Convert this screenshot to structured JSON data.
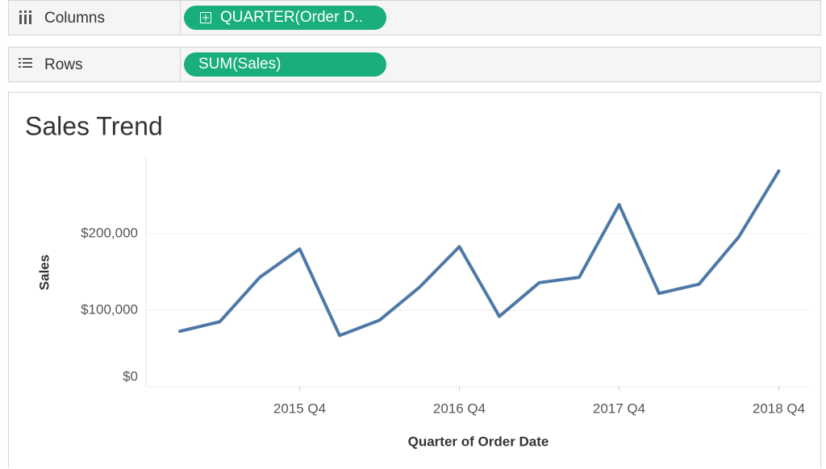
{
  "shelves": {
    "columns": {
      "label": "Columns",
      "pill": "QUARTER(Order D.."
    },
    "rows": {
      "label": "Rows",
      "pill": "SUM(Sales)"
    }
  },
  "chart_data": {
    "type": "line",
    "title": "Sales Trend",
    "x_label": "Quarter of Order Date",
    "y_label": "Sales",
    "categories": [
      null,
      null,
      null,
      "2015 Q4",
      null,
      null,
      null,
      "2016 Q4",
      null,
      null,
      null,
      "2017 Q4",
      null,
      null,
      null,
      "2018 Q4"
    ],
    "values": [
      72600,
      85000,
      143000,
      180000,
      67000,
      87000,
      130000,
      183000,
      92000,
      136000,
      143000,
      238000,
      122000,
      134000,
      196000,
      282000
    ],
    "color": "#4e79a7",
    "ylim": [
      0,
      300000
    ],
    "yticks": [
      {
        "value": 0,
        "label": "$0"
      },
      {
        "value": 100000,
        "label": "$100,000"
      },
      {
        "value": 200000,
        "label": "$200,000"
      }
    ],
    "grid": true
  }
}
